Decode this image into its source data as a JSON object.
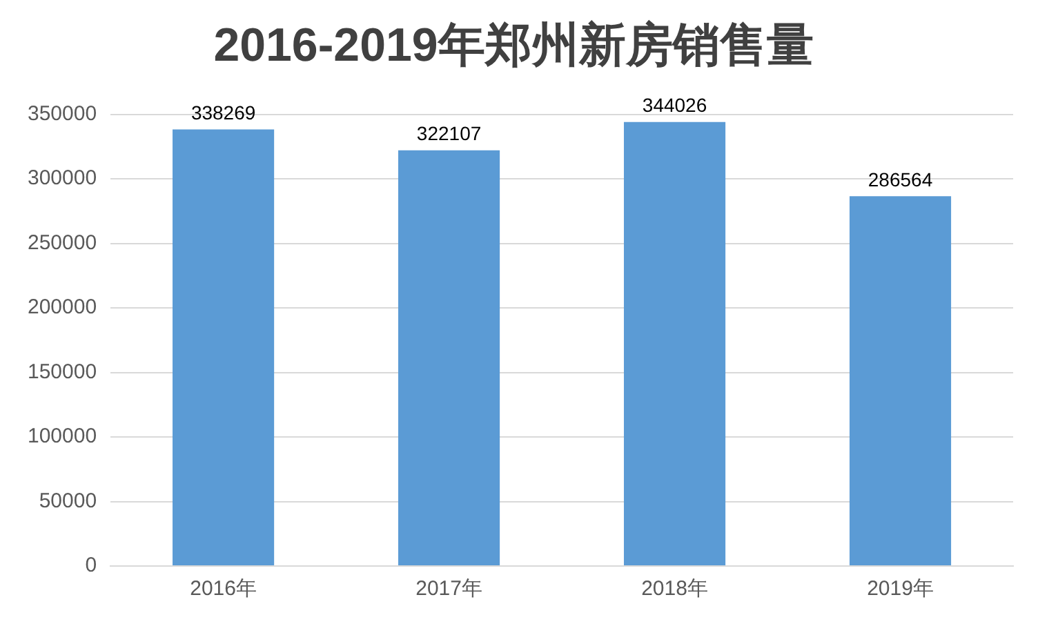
{
  "chart_data": {
    "type": "bar",
    "title": "2016-2019年郑州新房销售量",
    "categories": [
      "2016年",
      "2017年",
      "2018年",
      "2019年"
    ],
    "values": [
      338269,
      322107,
      344026,
      286564
    ],
    "color": "#5b9bd5",
    "ylim": [
      0,
      350000
    ],
    "yticks": [
      0,
      50000,
      100000,
      150000,
      200000,
      250000,
      300000,
      350000
    ],
    "grid": "y",
    "data_labels": true,
    "legend": false
  }
}
